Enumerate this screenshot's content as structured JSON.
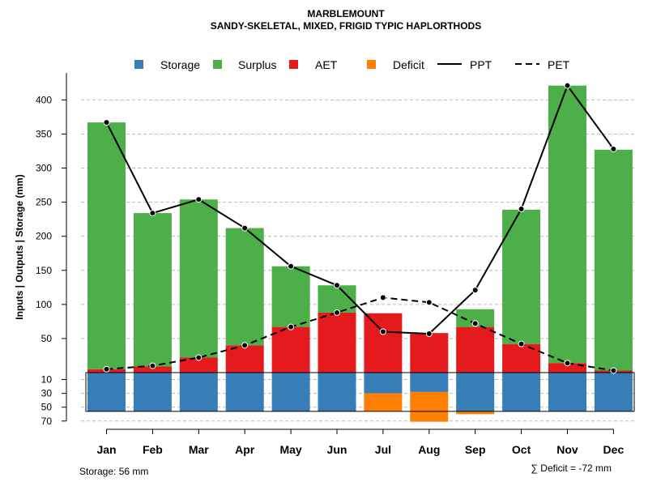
{
  "chart_data": {
    "type": "bar",
    "title": "MARBLEMOUNT",
    "subtitle": "SANDY-SKELETAL, MIXED, FRIGID TYPIC HAPLORTHODS",
    "ylabel": "Inputs | Outputs | Storage    (mm)",
    "categories": [
      "Jan",
      "Feb",
      "Mar",
      "Apr",
      "May",
      "Jun",
      "Jul",
      "Aug",
      "Sep",
      "Oct",
      "Nov",
      "Dec"
    ],
    "upper_ticks": [
      50,
      100,
      150,
      200,
      250,
      300,
      350,
      400
    ],
    "lower_ticks": [
      10,
      30,
      50,
      70
    ],
    "upper_ylim": [
      0,
      430
    ],
    "lower_ylim": [
      0,
      70
    ],
    "legend": [
      {
        "label": "Storage",
        "kind": "box",
        "color": "#377eb8"
      },
      {
        "label": "Surplus",
        "kind": "box",
        "color": "#4daf4a"
      },
      {
        "label": "AET",
        "kind": "box",
        "color": "#e41a1c"
      },
      {
        "label": "Deficit",
        "kind": "box",
        "color": "#ff7f00"
      },
      {
        "label": "PPT",
        "kind": "solid",
        "color": "#000000"
      },
      {
        "label": "PET",
        "kind": "dashed",
        "color": "#000000"
      }
    ],
    "series": [
      {
        "name": "AET",
        "color": "#e41a1c",
        "values": [
          5,
          9,
          22,
          40,
          67,
          88,
          87,
          58,
          67,
          42,
          14,
          3
        ]
      },
      {
        "name": "Surplus",
        "color": "#4daf4a",
        "values": [
          362,
          225,
          232,
          172,
          89,
          40,
          0,
          0,
          26,
          197,
          407,
          324
        ]
      },
      {
        "name": "Storage",
        "color": "#377eb8",
        "values": [
          56,
          56,
          56,
          56,
          56,
          56,
          30,
          28,
          56,
          56,
          56,
          56
        ]
      },
      {
        "name": "Deficit",
        "color": "#ff7f00",
        "values": [
          0,
          0,
          0,
          0,
          0,
          0,
          26,
          43,
          4,
          0,
          0,
          0
        ]
      },
      {
        "name": "PPT",
        "color": "#000000",
        "values": [
          367,
          234,
          254,
          212,
          156,
          128,
          60,
          57,
          121,
          240,
          421,
          328
        ]
      },
      {
        "name": "PET",
        "color": "#000000",
        "values": [
          5,
          10,
          22,
          40,
          67,
          88,
          110,
          103,
          72,
          42,
          14,
          3
        ]
      }
    ],
    "footer_left": "Storage: 56 mm",
    "footer_right": "∑ Deficit = -72 mm"
  },
  "colors": {
    "grid": "#bbbbbb"
  }
}
